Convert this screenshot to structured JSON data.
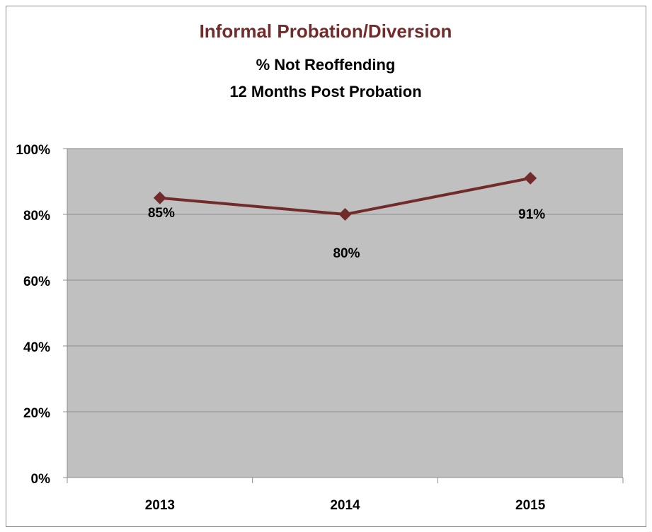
{
  "chart_data": {
    "type": "line",
    "title": "Informal Probation/Diversion",
    "subtitle": [
      "% Not Reoffending",
      "12 Months Post Probation"
    ],
    "categories": [
      "2013",
      "2014",
      "2015"
    ],
    "values": [
      85,
      80,
      91
    ],
    "value_labels": [
      "85%",
      "80%",
      "91%"
    ],
    "color": "#722b2b",
    "ylim": [
      0,
      100
    ],
    "yticks": [
      {
        "value": 0,
        "label": "0%"
      },
      {
        "value": 20,
        "label": "20%"
      },
      {
        "value": 40,
        "label": "40%"
      },
      {
        "value": 60,
        "label": "60%"
      },
      {
        "value": 80,
        "label": "80%"
      },
      {
        "value": 100,
        "label": "100%"
      }
    ],
    "grid": true
  }
}
